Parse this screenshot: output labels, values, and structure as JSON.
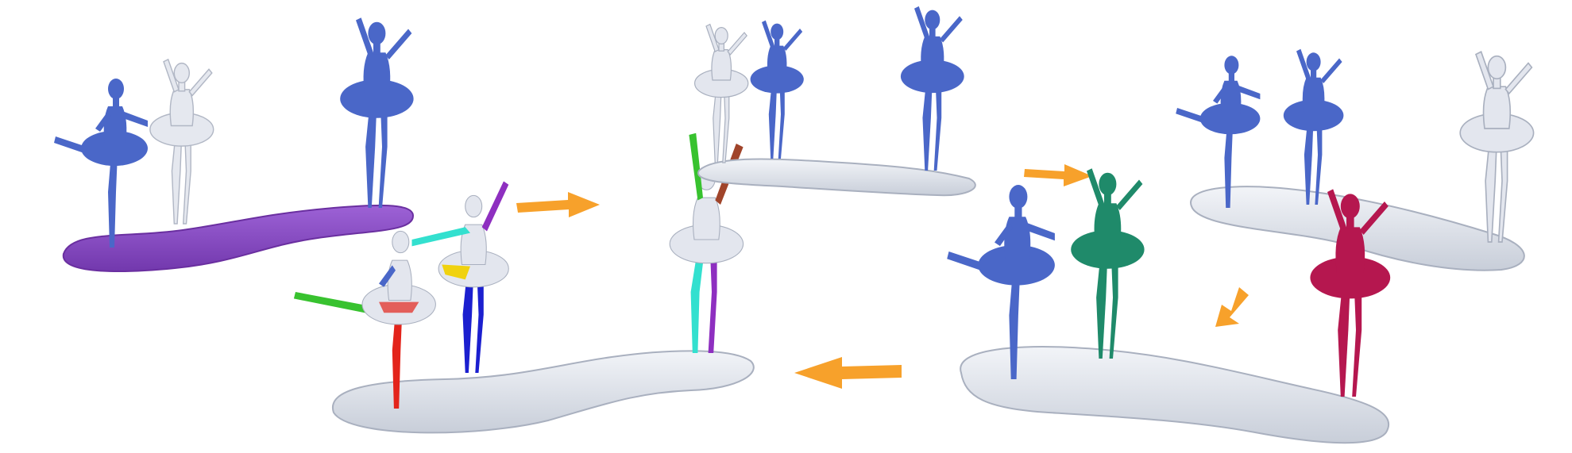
{
  "figure": {
    "colors": {
      "background": "#ffffff",
      "glass": "#d9dde6",
      "glass_edge": "#a9b0bf",
      "blue": "#4a67c8",
      "purple": "#8a4cc4",
      "teal_green": "#1f8a6a",
      "crimson": "#b5174f",
      "arrow": "#f7a12b",
      "seg_red": "#e3241b",
      "seg_green": "#38c22f",
      "seg_yellow": "#f0d20f",
      "seg_navy": "#1b1fcf",
      "seg_cyan": "#33e0cf",
      "seg_violet": "#8e2fc0",
      "seg_brown": "#a0442a"
    },
    "panels": [
      {
        "name": "input-composition",
        "base_color": "purple"
      },
      {
        "name": "segmentation",
        "base_color": "glass"
      },
      {
        "name": "decomposed-rear",
        "base_color": "glass"
      },
      {
        "name": "decomposed-front",
        "base_color": "glass"
      },
      {
        "name": "reassembled",
        "base_color": "glass"
      }
    ],
    "arrows": [
      {
        "name": "arrow-to-segmentation",
        "direction": "right"
      },
      {
        "name": "arrow-to-decomposed",
        "direction": "right"
      },
      {
        "name": "arrow-down",
        "direction": "down-left"
      },
      {
        "name": "arrow-back",
        "direction": "left"
      }
    ]
  }
}
